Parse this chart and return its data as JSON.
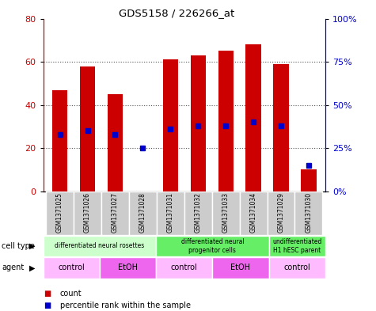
{
  "title": "GDS5158 / 226266_at",
  "samples": [
    "GSM1371025",
    "GSM1371026",
    "GSM1371027",
    "GSM1371028",
    "GSM1371031",
    "GSM1371032",
    "GSM1371033",
    "GSM1371034",
    "GSM1371029",
    "GSM1371030"
  ],
  "counts": [
    47,
    58,
    45,
    0,
    61,
    63,
    65,
    68,
    59,
    10
  ],
  "percentile_ranks": [
    33,
    35,
    33,
    25,
    36,
    38,
    38,
    40,
    38,
    15
  ],
  "ylim_left": [
    0,
    80
  ],
  "ylim_right": [
    0,
    100
  ],
  "yticks_left": [
    0,
    20,
    40,
    60,
    80
  ],
  "yticks_right": [
    0,
    25,
    50,
    75,
    100
  ],
  "ytick_labels_right": [
    "0%",
    "25%",
    "50%",
    "75%",
    "100%"
  ],
  "bar_color": "#cc0000",
  "dot_color": "#0000cc",
  "grid_color": "#555555",
  "cell_type_groups": [
    {
      "label": "differentiated neural rosettes",
      "start": 0,
      "end": 4,
      "color": "#ccffcc"
    },
    {
      "label": "differentiated neural\nprogenitor cells",
      "start": 4,
      "end": 8,
      "color": "#66ee66"
    },
    {
      "label": "undifferentiated\nH1 hESC parent",
      "start": 8,
      "end": 10,
      "color": "#66ee66"
    }
  ],
  "agent_groups": [
    {
      "label": "control",
      "start": 0,
      "end": 2,
      "color": "#ffbbff"
    },
    {
      "label": "EtOH",
      "start": 2,
      "end": 4,
      "color": "#ee66ee"
    },
    {
      "label": "control",
      "start": 4,
      "end": 6,
      "color": "#ffbbff"
    },
    {
      "label": "EtOH",
      "start": 6,
      "end": 8,
      "color": "#ee66ee"
    },
    {
      "label": "control",
      "start": 8,
      "end": 10,
      "color": "#ffbbff"
    }
  ],
  "xlabel_row_bg": "#cccccc",
  "legend_count_color": "#cc0000",
  "legend_rank_color": "#0000cc",
  "bar_width": 0.55
}
